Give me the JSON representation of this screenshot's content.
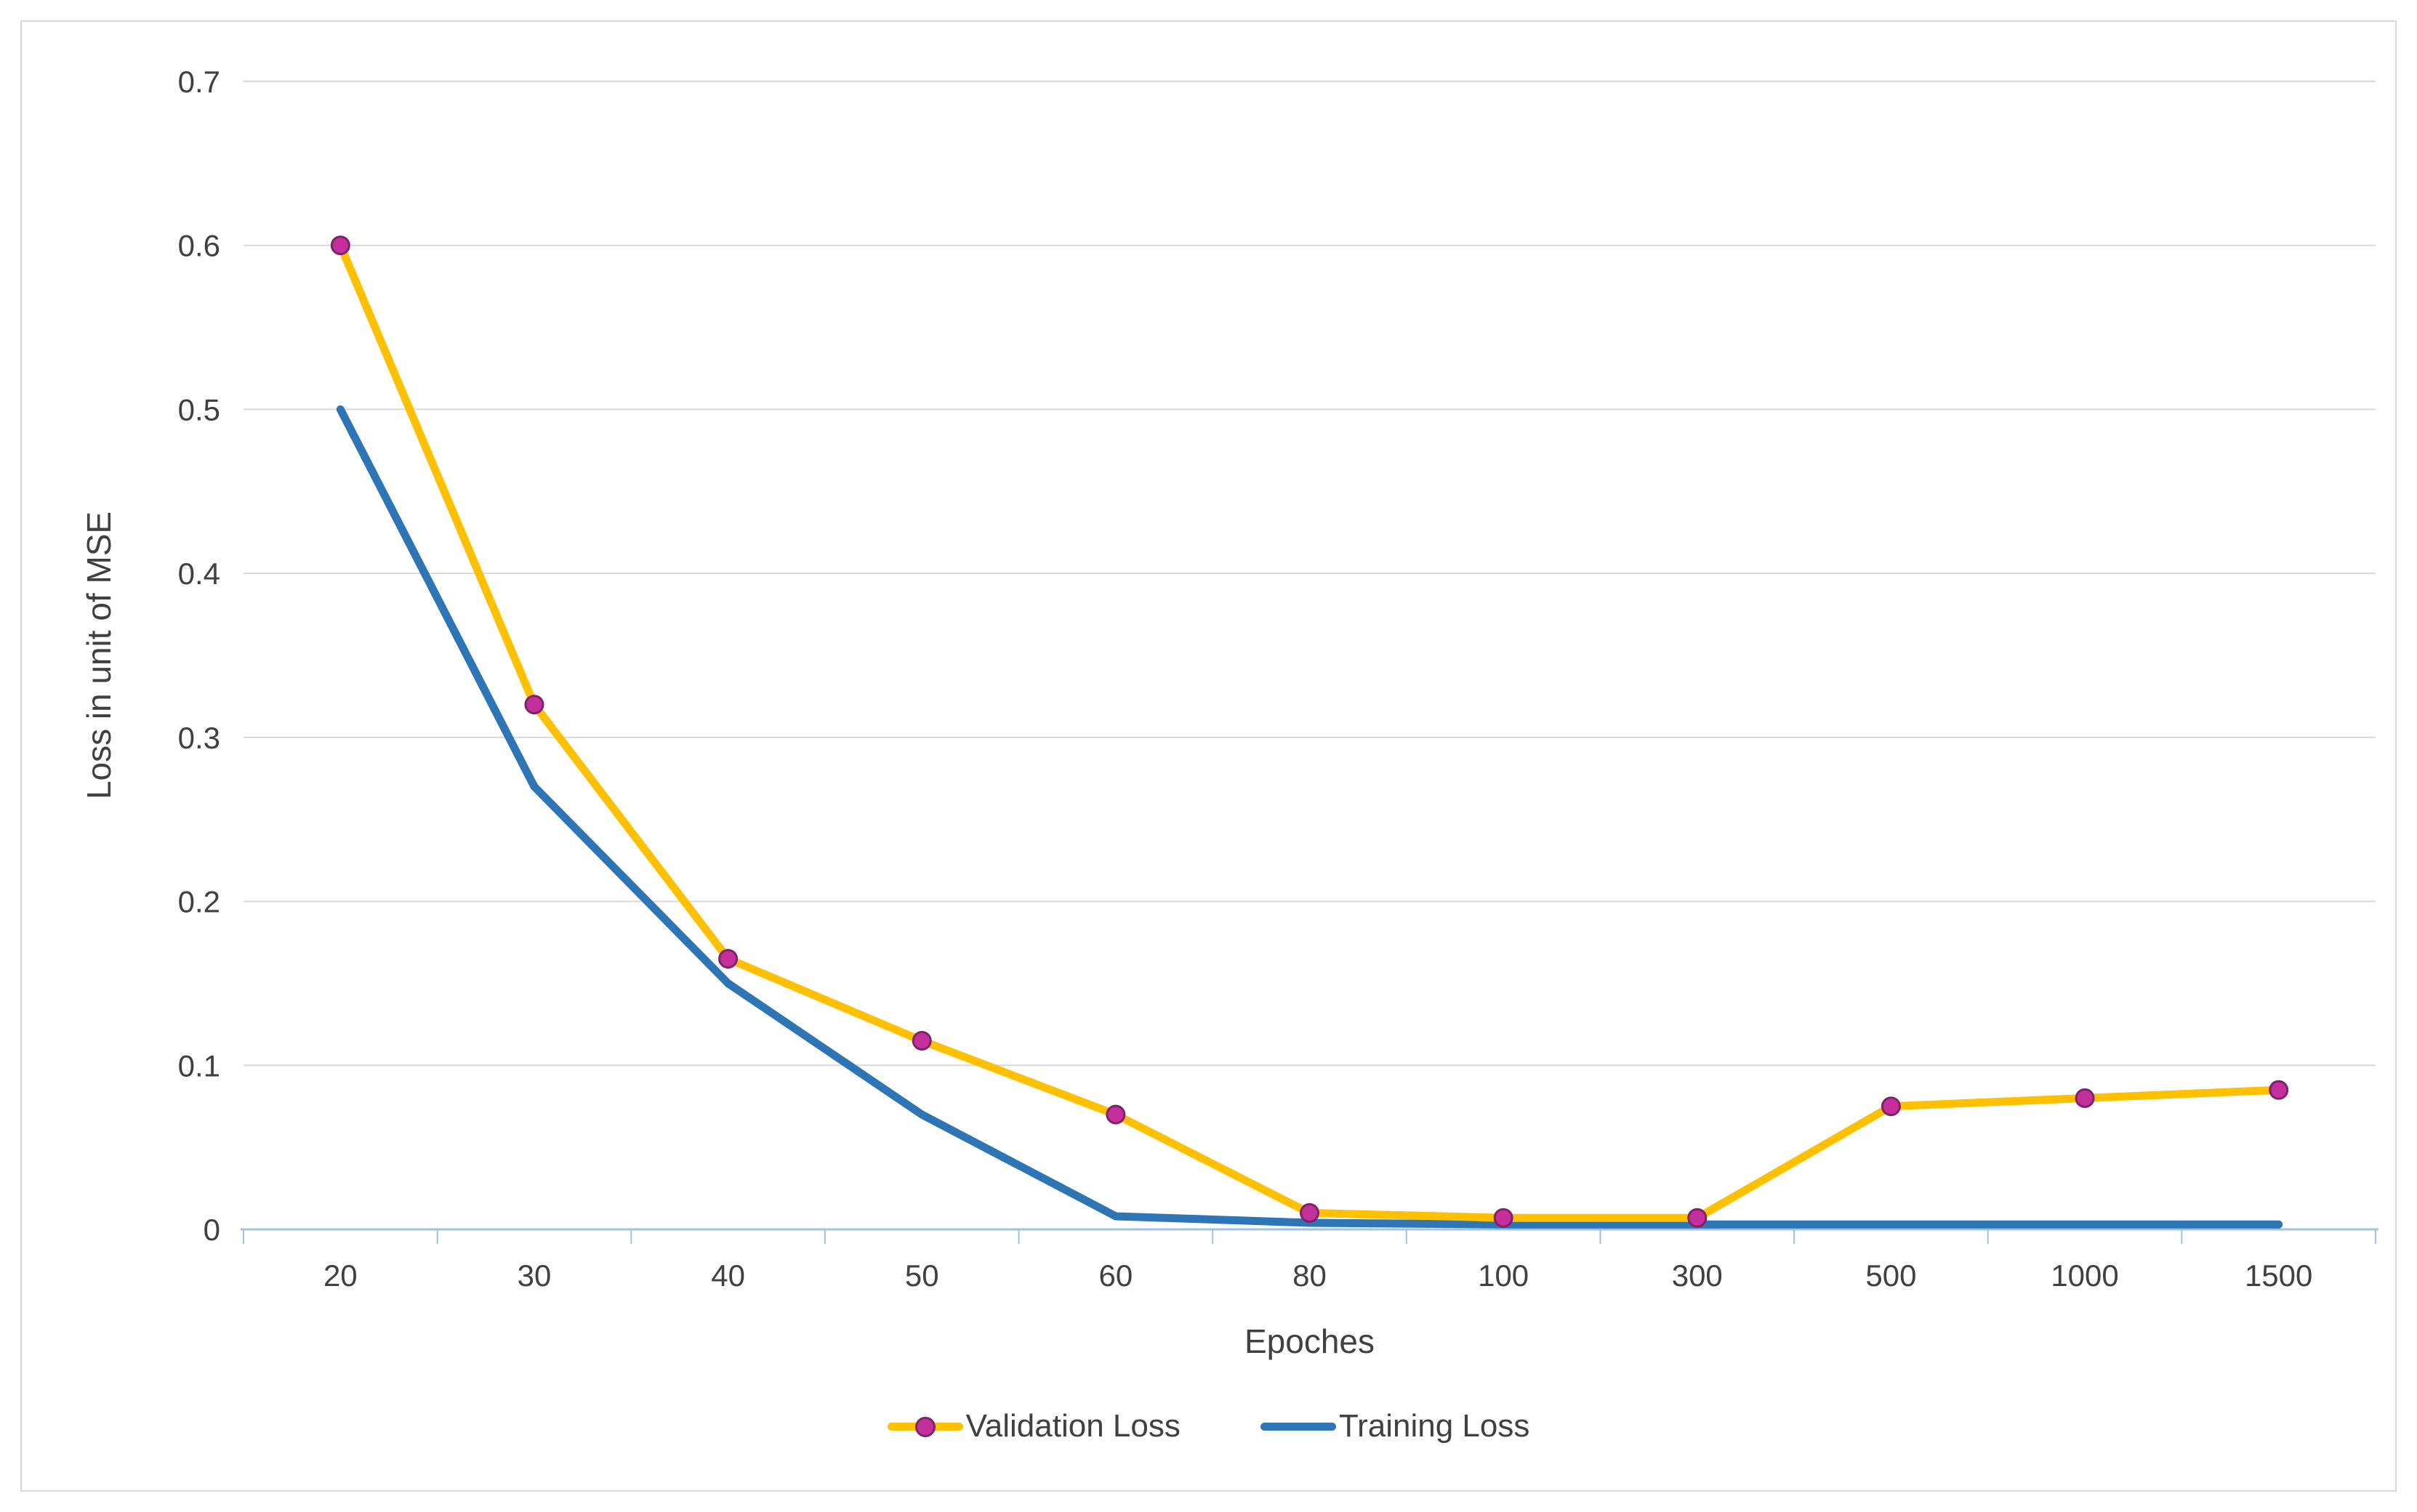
{
  "legend": [
    {
      "label": "Validation Loss"
    },
    {
      "label": "Training Loss"
    }
  ],
  "chart_data": {
    "type": "line",
    "title": "",
    "xlabel": "Epoches",
    "ylabel": "Loss in unit of MSE",
    "categories": [
      "20",
      "30",
      "40",
      "50",
      "60",
      "80",
      "100",
      "300",
      "500",
      "1000",
      "1500"
    ],
    "series": [
      {
        "name": "Validation Loss",
        "color": "#FFC000",
        "marker": "circle",
        "marker_color": "#C3309C",
        "marker_border": "#7E2366",
        "values": [
          0.6,
          0.32,
          0.165,
          0.115,
          0.07,
          0.01,
          0.007,
          0.007,
          0.075,
          0.08,
          0.085
        ]
      },
      {
        "name": "Training Loss",
        "color": "#2E75B6",
        "marker": "none",
        "values": [
          0.5,
          0.27,
          0.15,
          0.07,
          0.008,
          0.004,
          0.003,
          0.003,
          0.003,
          0.003,
          0.003
        ]
      }
    ],
    "ylim": [
      0,
      0.7
    ],
    "yticks": [
      0,
      0.1,
      0.2,
      0.3,
      0.4,
      0.5,
      0.6,
      0.7
    ],
    "ytick_labels": [
      "0",
      "0.1",
      "0.2",
      "0.3",
      "0.4",
      "0.5",
      "0.6",
      "0.7"
    ],
    "grid": "horizontal",
    "legend_position": "bottom",
    "colors": {
      "grid": "#D9D9D9",
      "axis": "#9DC3E6",
      "text": "#404040",
      "background": "#FFFFFF"
    }
  }
}
